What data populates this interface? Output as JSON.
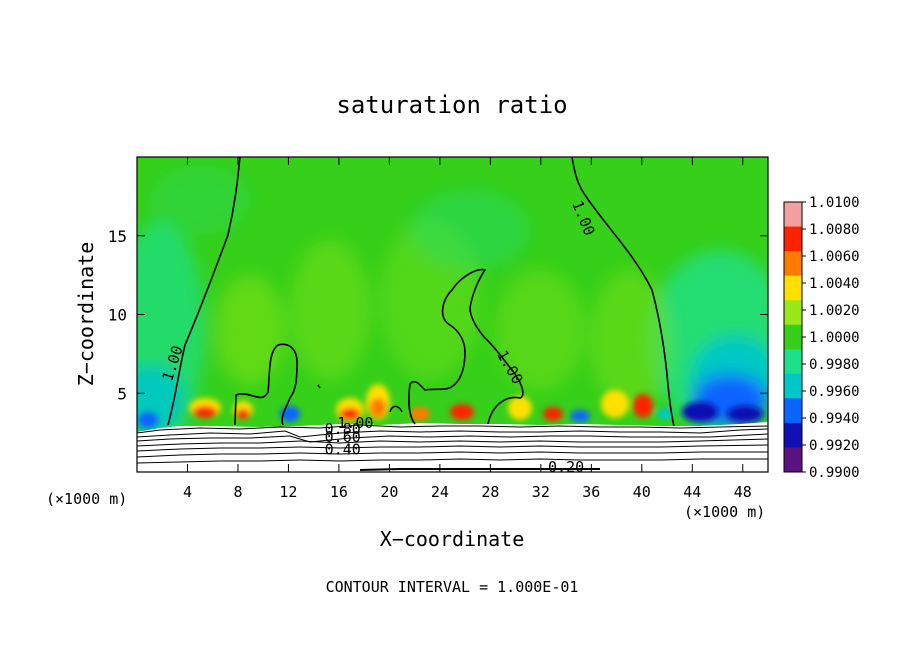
{
  "chart_data": {
    "type": "heatmap",
    "title": "saturation ratio",
    "xlabel": "X−coordinate",
    "ylabel": "Z−coordinate",
    "x_unit_left": "(×1000 m)",
    "x_unit_right": "(×1000 m)",
    "xlim": [
      0,
      50
    ],
    "ylim": [
      0,
      20
    ],
    "x_ticks": [
      4,
      8,
      12,
      16,
      20,
      24,
      28,
      32,
      36,
      40,
      44,
      48
    ],
    "y_ticks": [
      5,
      10,
      15
    ],
    "colorbar": {
      "labels": [
        "1.0100",
        "1.0080",
        "1.0060",
        "1.0040",
        "1.0020",
        "1.0000",
        "0.9980",
        "0.9960",
        "0.9940",
        "0.9920",
        "0.9900"
      ],
      "colors": [
        "#f2a0a0",
        "#ff2200",
        "#ff7a00",
        "#ffe000",
        "#9ae81a",
        "#36d01a",
        "#1ee08a",
        "#00c8c8",
        "#0a64ff",
        "#1010b4",
        "#5a1480"
      ]
    },
    "contour_labels": [
      {
        "text": "1.00",
        "x": 3.2,
        "z": 6.8,
        "angle": -72
      },
      {
        "text": "1.00",
        "x": 35.0,
        "z": 16.0,
        "angle": 68
      },
      {
        "text": "1.00",
        "x": 29.2,
        "z": 6.5,
        "angle": 60
      },
      {
        "text": "1.00",
        "x": 17.3,
        "z": 2.8,
        "angle": 0
      },
      {
        "text": "0.80",
        "x": 16.3,
        "z": 2.4,
        "angle": 0
      },
      {
        "text": "0.60",
        "x": 16.3,
        "z": 1.9,
        "angle": 0
      },
      {
        "text": "0.40",
        "x": 16.3,
        "z": 1.1,
        "angle": 0
      },
      {
        "text": "0.20",
        "x": 34.0,
        "z": 0.0,
        "angle": 0
      }
    ],
    "footer": "CONTOUR INTERVAL = 1.000E-01"
  }
}
